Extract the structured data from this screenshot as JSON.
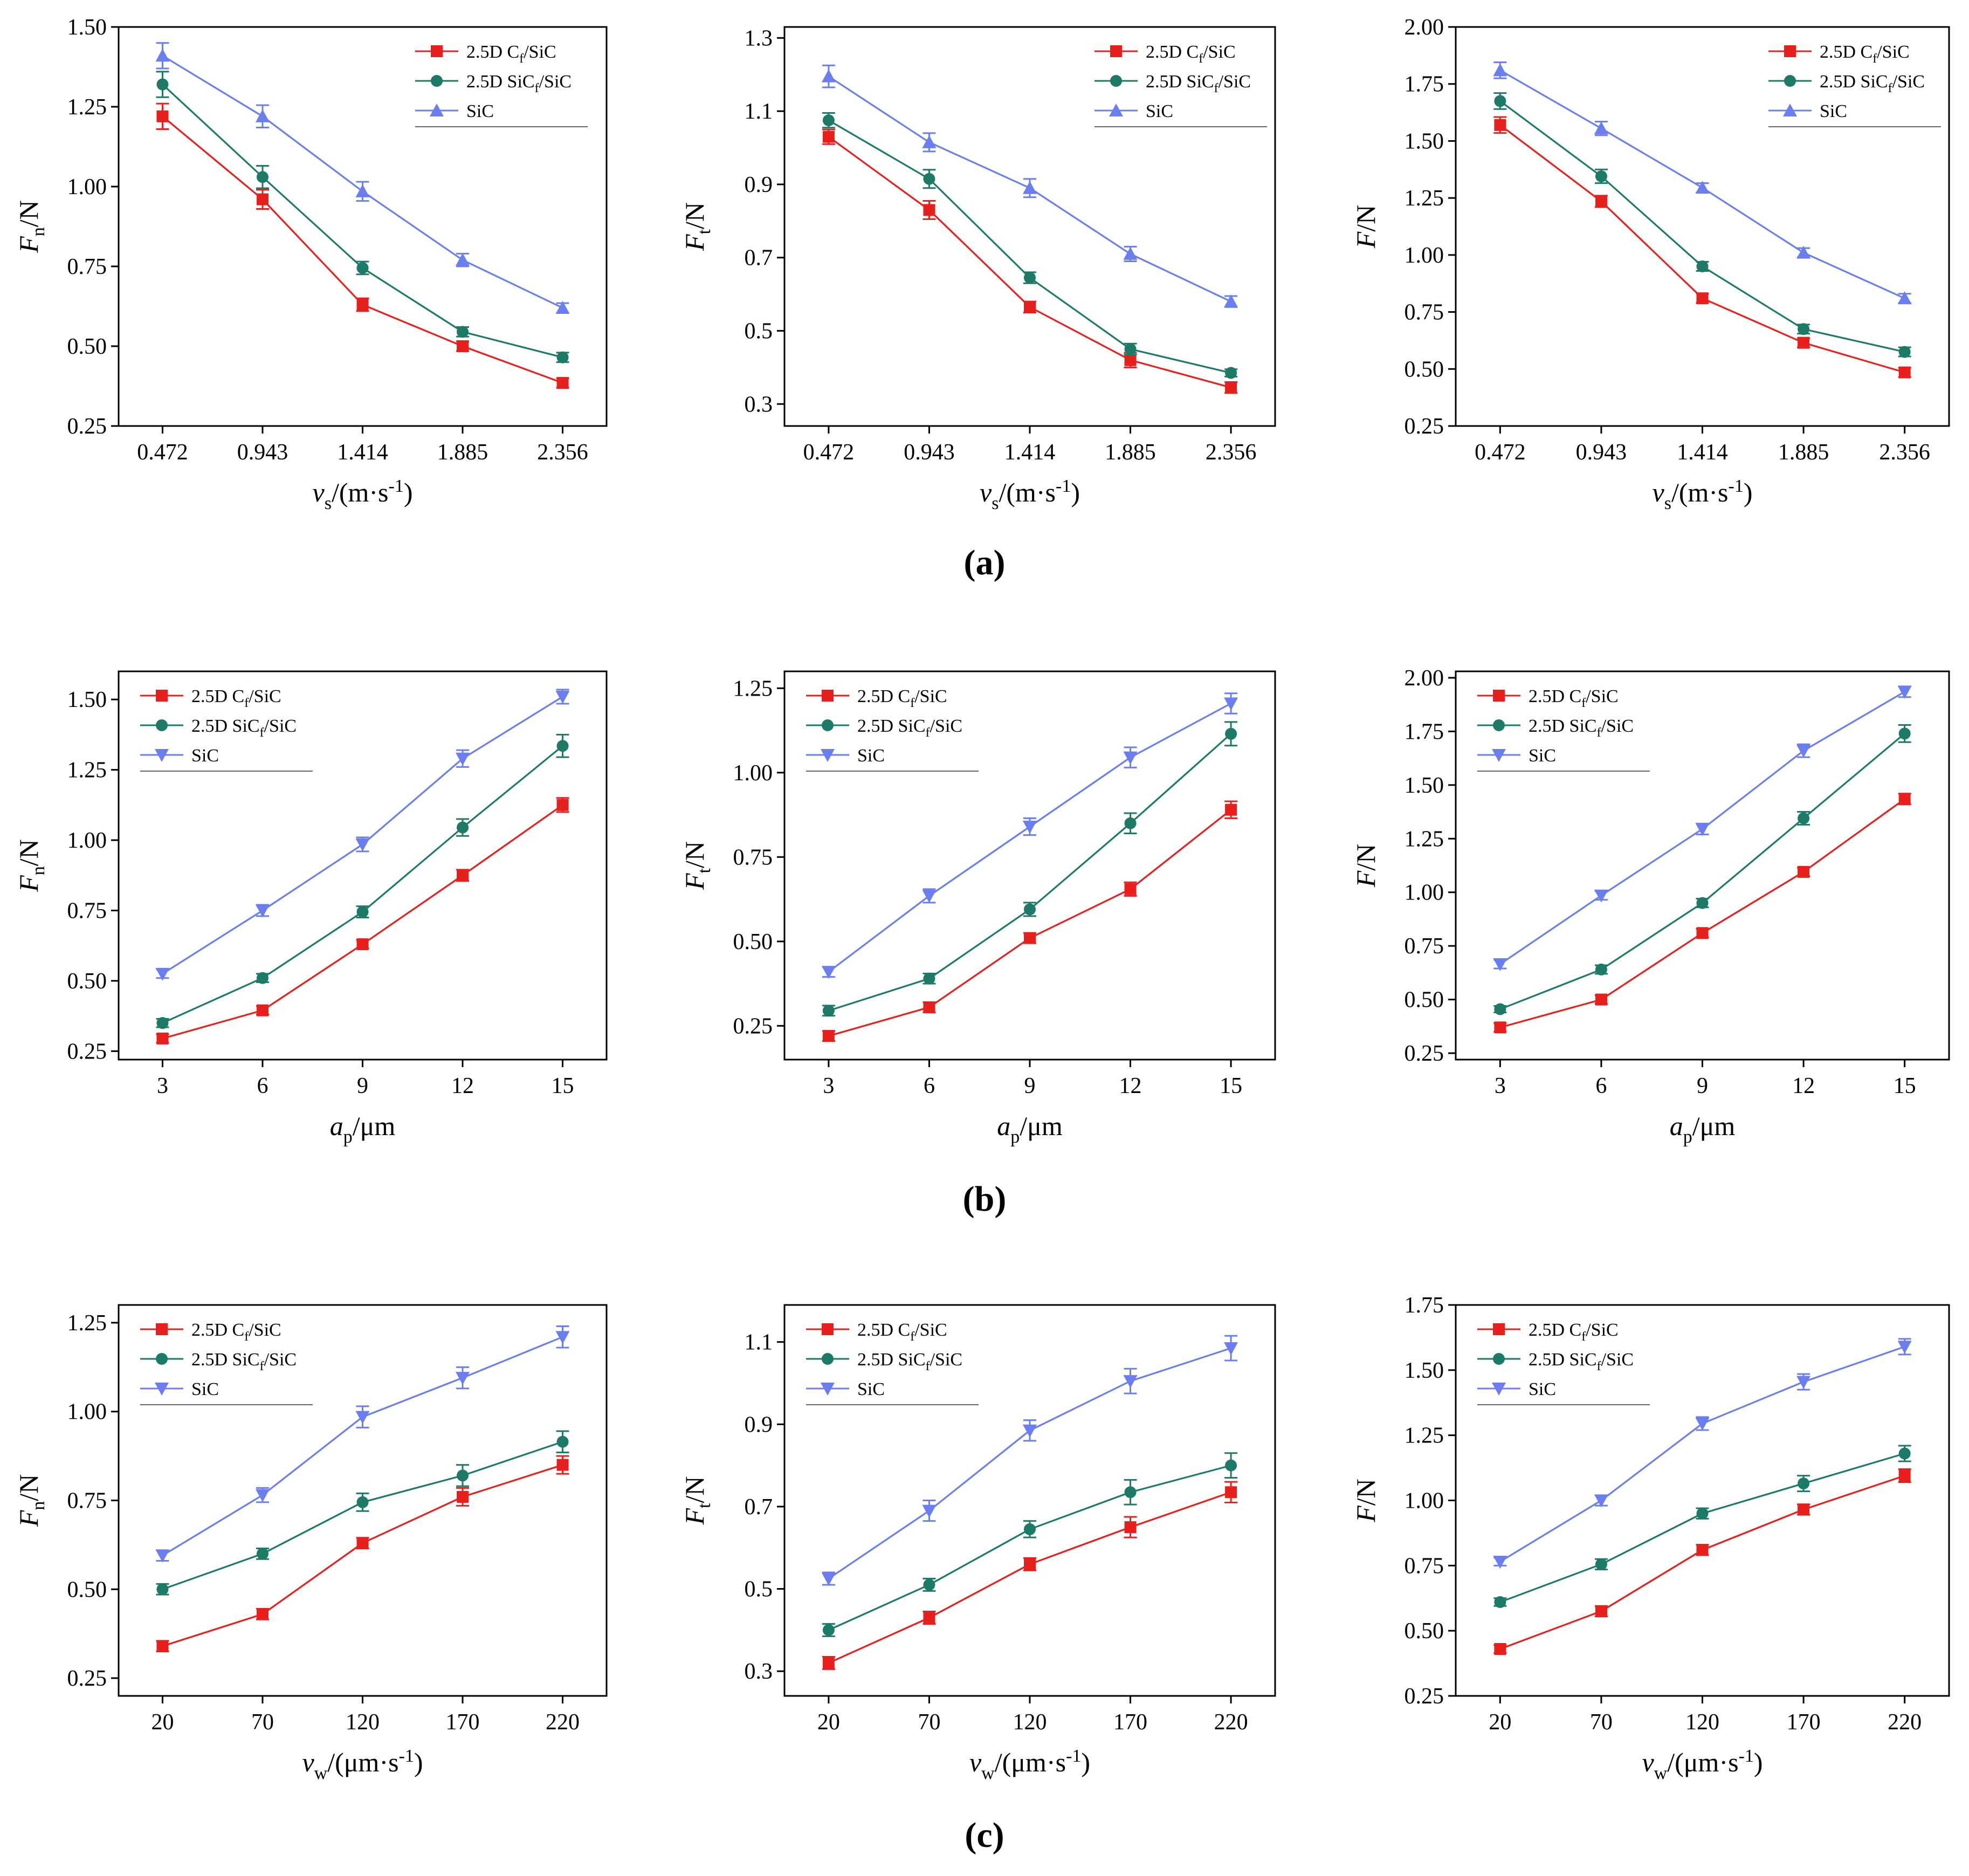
{
  "figure": {
    "row_labels": [
      "(a)",
      "(b)",
      "(c)"
    ]
  },
  "colors": {
    "Cf_SiC": "#e8201d",
    "SiCf_SiC": "#1d7a66",
    "SiC": "#6b7ef0",
    "axis": "#000000"
  },
  "legend_series": [
    {
      "key": "Cf_SiC",
      "main": "2.5D C",
      "sub": "f",
      "tail": "/SiC"
    },
    {
      "key": "SiCf_SiC",
      "main": "2.5D SiC",
      "sub": "f",
      "tail": "/SiC"
    },
    {
      "key": "SiC",
      "main": "SiC",
      "sub": "",
      "tail": ""
    }
  ],
  "chart_data": [
    {
      "type": "line",
      "row": "a",
      "marker_sic": "up",
      "ylabel": {
        "main": "F",
        "sub": "n",
        "tail": "/N"
      },
      "xlabel": {
        "main": "v",
        "sub": "s",
        "tail": "/(m·s",
        "sup": "-1",
        "end": ")"
      },
      "categories": [
        "0.472",
        "0.943",
        "1.414",
        "1.885",
        "2.356"
      ],
      "ylim": [
        0.25,
        1.5
      ],
      "yticks": [
        "0.25",
        "0.50",
        "0.75",
        "1.00",
        "1.25",
        "1.50"
      ],
      "series": [
        {
          "name": "2.5D Cf/SiC",
          "values": [
            1.22,
            0.96,
            0.63,
            0.5,
            0.385
          ],
          "errors": [
            0.04,
            0.03,
            0.02,
            0.015,
            0.015
          ]
        },
        {
          "name": "2.5D SiCf/SiC",
          "values": [
            1.32,
            1.03,
            0.745,
            0.545,
            0.465
          ],
          "errors": [
            0.04,
            0.035,
            0.02,
            0.015,
            0.015
          ]
        },
        {
          "name": "SiC",
          "values": [
            1.41,
            1.22,
            0.985,
            0.77,
            0.62
          ],
          "errors": [
            0.04,
            0.035,
            0.03,
            0.02,
            0.015
          ]
        }
      ]
    },
    {
      "type": "line",
      "row": "a",
      "marker_sic": "up",
      "ylabel": {
        "main": "F",
        "sub": "t",
        "tail": "/N"
      },
      "xlabel": {
        "main": "v",
        "sub": "s",
        "tail": "/(m·s",
        "sup": "-1",
        "end": ")"
      },
      "categories": [
        "0.472",
        "0.943",
        "1.414",
        "1.885",
        "2.356"
      ],
      "ylim": [
        0.24,
        1.33
      ],
      "yticks": [
        "0.3",
        "0.5",
        "0.7",
        "0.9",
        "1.1",
        "1.3"
      ],
      "series": [
        {
          "name": "2.5D Cf/SiC",
          "values": [
            1.03,
            0.83,
            0.565,
            0.42,
            0.345
          ],
          "errors": [
            0.02,
            0.025,
            0.015,
            0.02,
            0.015
          ]
        },
        {
          "name": "2.5D SiCf/SiC",
          "values": [
            1.075,
            0.915,
            0.645,
            0.45,
            0.385
          ],
          "errors": [
            0.02,
            0.025,
            0.015,
            0.015,
            0.01
          ]
        },
        {
          "name": "SiC",
          "values": [
            1.195,
            1.015,
            0.89,
            0.71,
            0.58
          ],
          "errors": [
            0.03,
            0.025,
            0.025,
            0.02,
            0.015
          ]
        }
      ]
    },
    {
      "type": "line",
      "row": "a",
      "marker_sic": "up",
      "ylabel": {
        "main": "F",
        "sub": "",
        "tail": "/N"
      },
      "xlabel": {
        "main": "v",
        "sub": "s",
        "tail": "/(m·s",
        "sup": "-1",
        "end": ")"
      },
      "categories": [
        "0.472",
        "0.943",
        "1.414",
        "1.885",
        "2.356"
      ],
      "ylim": [
        0.25,
        2.0
      ],
      "yticks": [
        "0.25",
        "0.50",
        "0.75",
        "1.00",
        "1.25",
        "1.50",
        "1.75",
        "2.00"
      ],
      "series": [
        {
          "name": "2.5D Cf/SiC",
          "values": [
            1.57,
            1.235,
            0.81,
            0.615,
            0.485
          ],
          "errors": [
            0.035,
            0.025,
            0.02,
            0.02,
            0.02
          ]
        },
        {
          "name": "2.5D SiCf/SiC",
          "values": [
            1.675,
            1.345,
            0.95,
            0.675,
            0.575
          ],
          "errors": [
            0.035,
            0.03,
            0.02,
            0.02,
            0.02
          ]
        },
        {
          "name": "SiC",
          "values": [
            1.81,
            1.555,
            1.295,
            1.01,
            0.81
          ],
          "errors": [
            0.035,
            0.03,
            0.02,
            0.02,
            0.02
          ]
        }
      ]
    },
    {
      "type": "line",
      "row": "b",
      "marker_sic": "down",
      "ylabel": {
        "main": "F",
        "sub": "n",
        "tail": "/N"
      },
      "xlabel": {
        "main": "a",
        "sub": "p",
        "tail": "/μm",
        "sup": "",
        "end": ""
      },
      "categories": [
        "3",
        "6",
        "9",
        "12",
        "15"
      ],
      "ylim": [
        0.22,
        1.6
      ],
      "yticks": [
        "0.25",
        "0.50",
        "0.75",
        "1.00",
        "1.25",
        "1.50"
      ],
      "series": [
        {
          "name": "2.5D Cf/SiC",
          "values": [
            0.295,
            0.395,
            0.63,
            0.875,
            1.125
          ],
          "errors": [
            0.015,
            0.015,
            0.015,
            0.02,
            0.025
          ]
        },
        {
          "name": "2.5D SiCf/SiC",
          "values": [
            0.35,
            0.51,
            0.745,
            1.045,
            1.335
          ],
          "errors": [
            0.015,
            0.015,
            0.02,
            0.03,
            0.04
          ]
        },
        {
          "name": "SiC",
          "values": [
            0.525,
            0.75,
            0.985,
            1.29,
            1.51
          ],
          "errors": [
            0.015,
            0.02,
            0.025,
            0.03,
            0.025
          ]
        }
      ]
    },
    {
      "type": "line",
      "row": "b",
      "marker_sic": "down",
      "ylabel": {
        "main": "F",
        "sub": "t",
        "tail": "/N"
      },
      "xlabel": {
        "main": "a",
        "sub": "p",
        "tail": "/μm",
        "sup": "",
        "end": ""
      },
      "categories": [
        "3",
        "6",
        "9",
        "12",
        "15"
      ],
      "ylim": [
        0.15,
        1.3
      ],
      "yticks": [
        "0.25",
        "0.50",
        "0.75",
        "1.00",
        "1.25"
      ],
      "series": [
        {
          "name": "2.5D Cf/SiC",
          "values": [
            0.22,
            0.305,
            0.51,
            0.655,
            0.89
          ],
          "errors": [
            0.015,
            0.015,
            0.015,
            0.02,
            0.025
          ]
        },
        {
          "name": "2.5D SiCf/SiC",
          "values": [
            0.295,
            0.39,
            0.595,
            0.85,
            1.115
          ],
          "errors": [
            0.015,
            0.015,
            0.02,
            0.03,
            0.035
          ]
        },
        {
          "name": "SiC",
          "values": [
            0.41,
            0.635,
            0.84,
            1.045,
            1.205
          ],
          "errors": [
            0.015,
            0.02,
            0.025,
            0.03,
            0.03
          ]
        }
      ]
    },
    {
      "type": "line",
      "row": "b",
      "marker_sic": "down",
      "ylabel": {
        "main": "F",
        "sub": "",
        "tail": "/N"
      },
      "xlabel": {
        "main": "a",
        "sub": "p",
        "tail": "/μm",
        "sup": "",
        "end": ""
      },
      "categories": [
        "3",
        "6",
        "9",
        "12",
        "15"
      ],
      "ylim": [
        0.22,
        2.03
      ],
      "yticks": [
        "0.25",
        "0.50",
        "0.75",
        "1.00",
        "1.25",
        "1.50",
        "1.75",
        "2.00"
      ],
      "series": [
        {
          "name": "2.5D Cf/SiC",
          "values": [
            0.37,
            0.5,
            0.81,
            1.095,
            1.435
          ],
          "errors": [
            0.02,
            0.02,
            0.02,
            0.02,
            0.025
          ]
        },
        {
          "name": "2.5D SiCf/SiC",
          "values": [
            0.455,
            0.64,
            0.95,
            1.345,
            1.74
          ],
          "errors": [
            0.015,
            0.02,
            0.02,
            0.03,
            0.04
          ]
        },
        {
          "name": "SiC",
          "values": [
            0.665,
            0.985,
            1.295,
            1.66,
            1.935
          ],
          "errors": [
            0.02,
            0.02,
            0.025,
            0.03,
            0.025
          ]
        }
      ]
    },
    {
      "type": "line",
      "row": "c",
      "marker_sic": "down",
      "ylabel": {
        "main": "F",
        "sub": "n",
        "tail": "/N"
      },
      "xlabel": {
        "main": "v",
        "sub": "w",
        "tail": "/(μm·s",
        "sup": "-1",
        "end": ")"
      },
      "categories": [
        "20",
        "70",
        "120",
        "170",
        "220"
      ],
      "ylim": [
        0.2,
        1.3
      ],
      "yticks": [
        "0.25",
        "0.50",
        "0.75",
        "1.00",
        "1.25"
      ],
      "series": [
        {
          "name": "2.5D Cf/SiC",
          "values": [
            0.34,
            0.43,
            0.63,
            0.76,
            0.85
          ],
          "errors": [
            0.015,
            0.015,
            0.015,
            0.025,
            0.025
          ]
        },
        {
          "name": "2.5D SiCf/SiC",
          "values": [
            0.5,
            0.6,
            0.745,
            0.82,
            0.915
          ],
          "errors": [
            0.015,
            0.015,
            0.025,
            0.03,
            0.03
          ]
        },
        {
          "name": "SiC",
          "values": [
            0.595,
            0.765,
            0.985,
            1.095,
            1.21
          ],
          "errors": [
            0.015,
            0.02,
            0.03,
            0.03,
            0.03
          ]
        }
      ]
    },
    {
      "type": "line",
      "row": "c",
      "marker_sic": "down",
      "ylabel": {
        "main": "F",
        "sub": "t",
        "tail": "/N"
      },
      "xlabel": {
        "main": "v",
        "sub": "w",
        "tail": "/(μm·s",
        "sup": "-1",
        "end": ")"
      },
      "categories": [
        "20",
        "70",
        "120",
        "170",
        "220"
      ],
      "ylim": [
        0.24,
        1.19
      ],
      "yticks": [
        "0.3",
        "0.5",
        "0.7",
        "0.9",
        "1.1"
      ],
      "series": [
        {
          "name": "2.5D Cf/SiC",
          "values": [
            0.32,
            0.43,
            0.56,
            0.65,
            0.735
          ],
          "errors": [
            0.015,
            0.015,
            0.015,
            0.025,
            0.025
          ]
        },
        {
          "name": "2.5D SiCf/SiC",
          "values": [
            0.4,
            0.51,
            0.645,
            0.735,
            0.8
          ],
          "errors": [
            0.015,
            0.015,
            0.02,
            0.03,
            0.03
          ]
        },
        {
          "name": "SiC",
          "values": [
            0.525,
            0.69,
            0.885,
            1.005,
            1.085
          ],
          "errors": [
            0.015,
            0.025,
            0.025,
            0.03,
            0.03
          ]
        }
      ]
    },
    {
      "type": "line",
      "row": "c",
      "marker_sic": "down",
      "ylabel": {
        "main": "F",
        "sub": "",
        "tail": "/N"
      },
      "xlabel": {
        "main": "v",
        "sub": "w",
        "tail": "/(μm·s",
        "sup": "-1",
        "end": ")"
      },
      "categories": [
        "20",
        "70",
        "120",
        "170",
        "220"
      ],
      "ylim": [
        0.25,
        1.75
      ],
      "yticks": [
        "0.25",
        "0.50",
        "0.75",
        "1.00",
        "1.25",
        "1.50",
        "1.75"
      ],
      "series": [
        {
          "name": "2.5D Cf/SiC",
          "values": [
            0.43,
            0.575,
            0.81,
            0.965,
            1.095
          ],
          "errors": [
            0.015,
            0.02,
            0.02,
            0.02,
            0.025
          ]
        },
        {
          "name": "2.5D SiCf/SiC",
          "values": [
            0.61,
            0.755,
            0.95,
            1.065,
            1.18
          ],
          "errors": [
            0.015,
            0.02,
            0.02,
            0.03,
            0.03
          ]
        },
        {
          "name": "SiC",
          "values": [
            0.765,
            1.0,
            1.295,
            1.455,
            1.59
          ],
          "errors": [
            0.015,
            0.02,
            0.025,
            0.03,
            0.03
          ]
        }
      ]
    }
  ]
}
